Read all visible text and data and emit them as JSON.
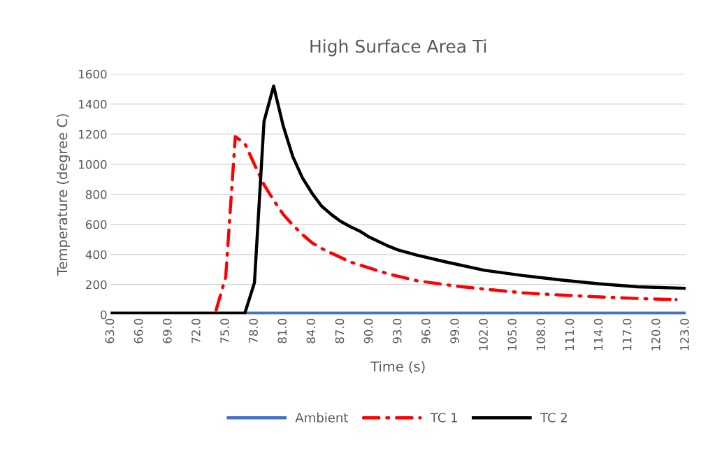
{
  "chart_data": {
    "type": "line",
    "title": "High Surface Area Ti",
    "xlabel": "Time (s)",
    "ylabel": "Temperature (degree C)",
    "xlim": [
      63,
      123
    ],
    "xticks": [
      {
        "value": 63,
        "label": "63.0"
      },
      {
        "value": 66,
        "label": "66.0"
      },
      {
        "value": 69,
        "label": "69.0"
      },
      {
        "value": 72,
        "label": "72.0"
      },
      {
        "value": 75,
        "label": "75.0"
      },
      {
        "value": 78,
        "label": "78.0"
      },
      {
        "value": 81,
        "label": "81.0"
      },
      {
        "value": 84,
        "label": "84.0"
      },
      {
        "value": 87,
        "label": "87.0"
      },
      {
        "value": 90,
        "label": "90.0"
      },
      {
        "value": 93,
        "label": "93.0"
      },
      {
        "value": 96,
        "label": "96.0"
      },
      {
        "value": 99,
        "label": "99.0"
      },
      {
        "value": 102,
        "label": "102.0"
      },
      {
        "value": 105,
        "label": "105.0"
      },
      {
        "value": 108,
        "label": "108.0"
      },
      {
        "value": 111,
        "label": "111.0"
      },
      {
        "value": 114,
        "label": "114.0"
      },
      {
        "value": 117,
        "label": "117.0"
      },
      {
        "value": 120,
        "label": "120.0"
      },
      {
        "value": 123,
        "label": "123.0"
      }
    ],
    "ylim": [
      0,
      1600
    ],
    "yticks": [
      0,
      200,
      400,
      600,
      800,
      1000,
      1200,
      1400,
      1600
    ],
    "grid": "y",
    "legend": "bottom",
    "series": [
      {
        "name": "Ambient",
        "color": "#4472c4",
        "line_style": "solid",
        "x": [
          77,
          100,
          123
        ],
        "values": [
          10,
          10,
          10
        ]
      },
      {
        "name": "TC 1",
        "color": "#ff0000",
        "line_style": "dashdot",
        "x": [
          74,
          75,
          76,
          77,
          78,
          79,
          80,
          81,
          82,
          83,
          84,
          85,
          86,
          87,
          88,
          89,
          90,
          92,
          95,
          99,
          102,
          106,
          110,
          115,
          119,
          122
        ],
        "values": [
          31,
          251,
          1184,
          1137,
          998,
          863,
          761,
          667,
          596,
          533,
          478,
          440,
          410,
          380,
          350,
          330,
          310,
          270,
          225,
          190,
          170,
          145,
          130,
          115,
          105,
          100
        ]
      },
      {
        "name": "TC 2",
        "color": "#000000",
        "line_style": "solid",
        "x": [
          63,
          65,
          67,
          69,
          71,
          73,
          75,
          77,
          78,
          79,
          80,
          81,
          82,
          83,
          84,
          85,
          86,
          87,
          88,
          89,
          90,
          91,
          92,
          93,
          95,
          98,
          102,
          106,
          110,
          114,
          118,
          123
        ],
        "values": [
          10,
          10,
          10,
          10,
          10,
          10,
          10,
          10,
          212,
          1286,
          1520,
          1255,
          1051,
          910,
          808,
          722,
          667,
          620,
          585,
          555,
          515,
          485,
          455,
          430,
          395,
          350,
          295,
          260,
          230,
          205,
          185,
          175
        ]
      }
    ]
  }
}
